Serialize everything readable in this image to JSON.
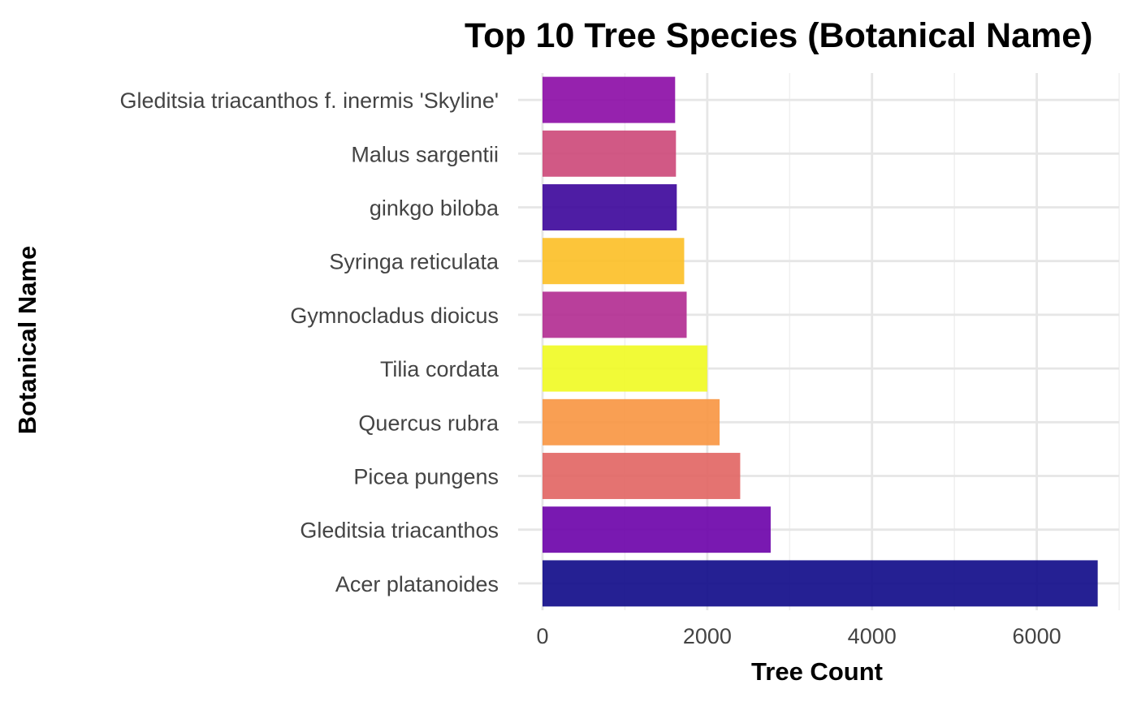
{
  "chart_data": {
    "type": "bar",
    "orientation": "horizontal",
    "title": "Top 10 Tree Species (Botanical Name)",
    "xlabel": "Tree Count",
    "ylabel": "Botanical Name",
    "xlim": [
      0,
      7000
    ],
    "xticks": [
      0,
      2000,
      4000,
      6000
    ],
    "grid": true,
    "legend": "none",
    "categories": [
      "Acer platanoides",
      "Gleditsia triacanthos",
      "Picea pungens",
      "Quercus rubra",
      "Tilia cordata",
      "Gymnocladus dioicus",
      "Syringa reticulata",
      "ginkgo biloba",
      "Malus sargentii",
      "Gleditsia triacanthos f. inermis 'Skyline'"
    ],
    "values": [
      6740,
      2770,
      2400,
      2150,
      2000,
      1750,
      1720,
      1630,
      1620,
      1610
    ],
    "colors": [
      "#0d0887",
      "#6a00a8",
      "#e16462",
      "#f89540",
      "#f0f921",
      "#b12a90",
      "#fcbf25",
      "#3b049a",
      "#cc4778",
      "#8b0aa5"
    ]
  }
}
